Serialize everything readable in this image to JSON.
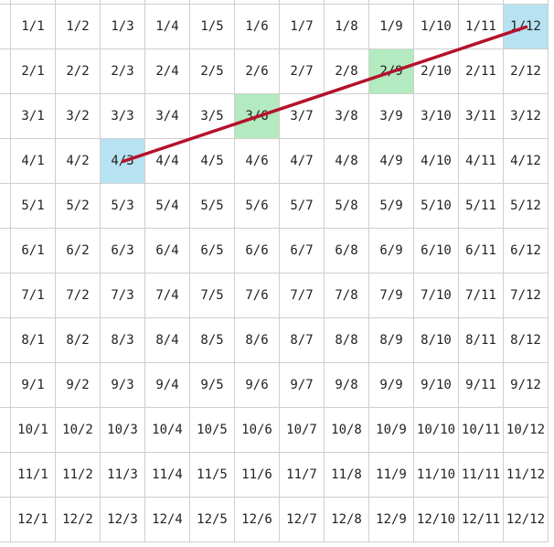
{
  "grid": {
    "rows": 12,
    "cols": 12,
    "cell_label_format": "numerator/denominator"
  },
  "highlights": {
    "endpoints": {
      "color": "#b7e2f2",
      "cells": [
        {
          "row": 4,
          "col": 3
        },
        {
          "row": 1,
          "col": 12
        }
      ]
    },
    "on_line": {
      "color": "#b3eabf",
      "cells": [
        {
          "row": 3,
          "col": 6
        },
        {
          "row": 2,
          "col": 9
        }
      ]
    }
  },
  "connector": {
    "color": "#b5102a",
    "from": {
      "row": 4,
      "col": 3
    },
    "to": {
      "row": 1,
      "col": 12
    }
  }
}
